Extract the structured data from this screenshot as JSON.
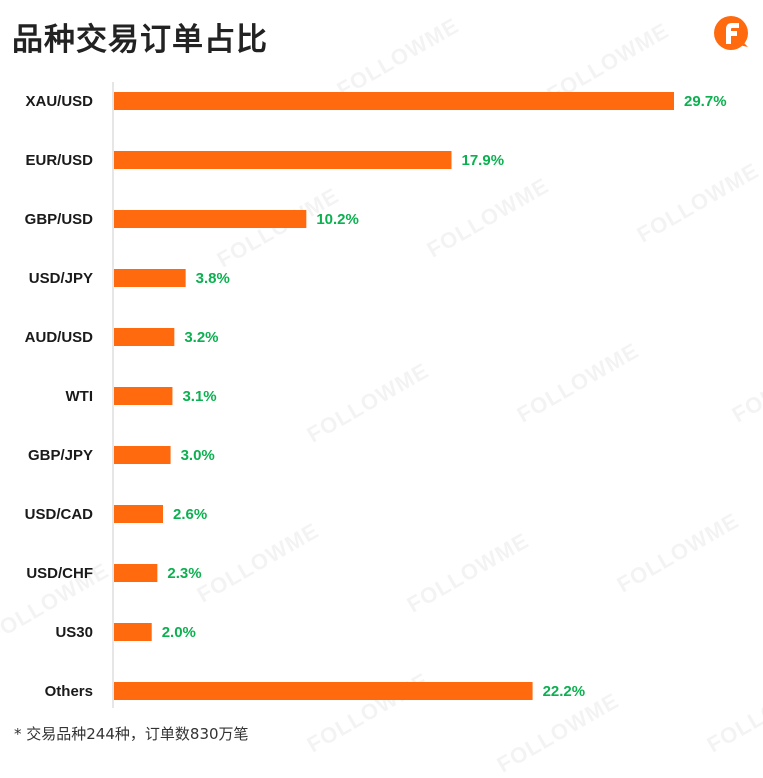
{
  "title": "品种交易订单占比",
  "footnote": "* 交易品种244种，订单数830万笔",
  "watermark_text": "FOLLOWME",
  "logo": {
    "icon": "followme-f-logo-icon",
    "color": "#ff6a0e"
  },
  "colors": {
    "bar": "#ff6a0e",
    "value_label": "#0cb050",
    "axis": "#e6e6e6"
  },
  "chart_data": {
    "type": "bar",
    "orientation": "horizontal",
    "categories": [
      "XAU/USD",
      "EUR/USD",
      "GBP/USD",
      "USD/JPY",
      "AUD/USD",
      "WTI",
      "GBP/JPY",
      "USD/CAD",
      "USD/CHF",
      "US30",
      "Others"
    ],
    "values": [
      29.7,
      17.9,
      10.2,
      3.8,
      3.2,
      3.1,
      3.0,
      2.6,
      2.3,
      2.0,
      22.2
    ],
    "value_labels": [
      "29.7%",
      "17.9%",
      "10.2%",
      "3.8%",
      "3.2%",
      "3.1%",
      "3.0%",
      "2.6%",
      "2.3%",
      "2.0%",
      "22.2%"
    ],
    "unit": "%",
    "xlim": [
      0,
      29.7
    ]
  }
}
